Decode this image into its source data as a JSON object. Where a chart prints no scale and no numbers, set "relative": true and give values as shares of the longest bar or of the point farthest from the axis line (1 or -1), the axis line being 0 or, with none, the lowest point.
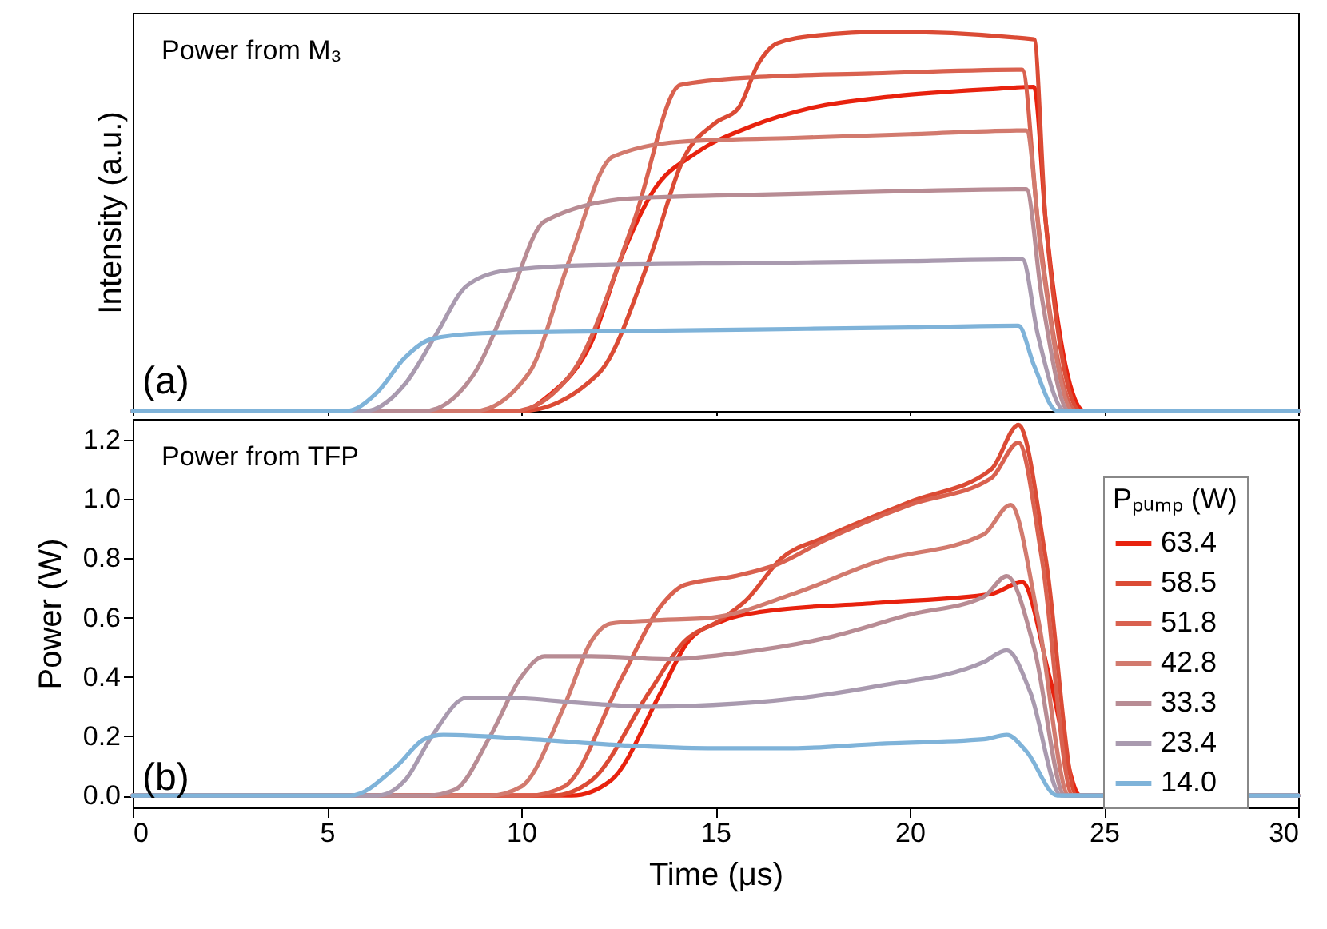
{
  "chart_data": [
    {
      "type": "line",
      "relative": true,
      "ylabel": "Intensity (a.u.)",
      "annotations": [
        "Power from M₃",
        "(a)"
      ],
      "xlim": [
        0,
        30
      ],
      "xticks": [
        0,
        5,
        10,
        15,
        20,
        25,
        30
      ],
      "tick_labels": false,
      "grid": false,
      "legend": false,
      "series": [
        {
          "color": "#e8220e",
          "x": [
            0,
            10,
            10.7,
            11.8,
            12.6,
            13.4,
            14.5,
            15.9,
            17.5,
            19.6,
            22.3,
            23.2,
            23.5,
            24.5,
            30
          ],
          "values": [
            0,
            0,
            0.04,
            0.18,
            0.41,
            0.58,
            0.68,
            0.75,
            0.8,
            0.83,
            0.85,
            0.855,
            0.5,
            0,
            0
          ]
        },
        {
          "color": "#db4b35",
          "x": [
            0,
            10,
            12,
            13.3,
            14.2,
            15.0,
            15.6,
            16.1,
            16.6,
            17.6,
            19.4,
            23.2,
            23.5,
            24.4,
            30
          ],
          "values": [
            0,
            0,
            0.1,
            0.4,
            0.67,
            0.76,
            0.8,
            0.915,
            0.97,
            0.99,
            1.0,
            0.98,
            0.5,
            0,
            0
          ]
        },
        {
          "color": "#d9614f",
          "x": [
            0,
            9.8,
            11.3,
            12.9,
            14.1,
            16,
            19,
            22.9,
            23.3,
            24.3,
            30
          ],
          "values": [
            0,
            0,
            0.1,
            0.5,
            0.86,
            0.88,
            0.89,
            0.9,
            0.5,
            0,
            0
          ]
        },
        {
          "color": "#d27a6e",
          "x": [
            0,
            8.8,
            10.2,
            11.25,
            12.35,
            14.1,
            17,
            20,
            23.0,
            23.4,
            24.2,
            30
          ],
          "values": [
            0,
            0,
            0.1,
            0.4,
            0.67,
            0.71,
            0.72,
            0.73,
            0.74,
            0.4,
            0,
            0
          ]
        },
        {
          "color": "#b88c94",
          "x": [
            0,
            7.5,
            8.8,
            9.7,
            10.6,
            12.8,
            16,
            20,
            23.0,
            23.4,
            24.1,
            30
          ],
          "values": [
            0,
            0,
            0.1,
            0.3,
            0.5,
            0.56,
            0.57,
            0.58,
            0.585,
            0.3,
            0,
            0
          ]
        },
        {
          "color": "#a99aaf",
          "x": [
            0,
            6.0,
            7.0,
            7.8,
            8.6,
            9.6,
            12,
            16,
            20,
            22.9,
            23.3,
            24.0,
            30
          ],
          "values": [
            0,
            0,
            0.07,
            0.2,
            0.33,
            0.37,
            0.385,
            0.39,
            0.395,
            0.4,
            0.2,
            0,
            0
          ]
        },
        {
          "color": "#7fb3d9",
          "x": [
            0,
            5.5,
            6.3,
            7.0,
            7.7,
            9,
            12,
            16,
            20,
            22.8,
            23.2,
            23.8,
            30
          ],
          "values": [
            0,
            0,
            0.05,
            0.14,
            0.19,
            0.205,
            0.21,
            0.215,
            0.22,
            0.225,
            0.12,
            0,
            0
          ]
        }
      ]
    },
    {
      "type": "line",
      "xlabel": "Time (μs)",
      "ylabel": "Power (W)",
      "legend_title": "Pₚᵤₘₚ (W)",
      "annotations": [
        "Power from TFP",
        "(b)"
      ],
      "xlim": [
        0,
        30
      ],
      "xticks": [
        0,
        5,
        10,
        15,
        20,
        25,
        30
      ],
      "ylim": [
        -0.04,
        1.27
      ],
      "yticks": [
        {
          "value": 0,
          "label": "0.0"
        },
        0.2,
        0.4,
        0.6,
        0.8,
        {
          "value": 1,
          "label": "1.0"
        },
        1.2
      ],
      "grid": false,
      "legend": "right",
      "series": [
        {
          "name": "63.4",
          "color": "#e8220e",
          "x": [
            0,
            11.3,
            12.3,
            13.6,
            14.3,
            15.2,
            16.2,
            19.2,
            22.1,
            22.9,
            23.6,
            24.4,
            30
          ],
          "values": [
            0,
            0,
            0.05,
            0.35,
            0.52,
            0.59,
            0.62,
            0.65,
            0.68,
            0.72,
            0.4,
            0,
            0
          ]
        },
        {
          "name": "58.5",
          "color": "#db4b35",
          "x": [
            0,
            10.8,
            11.8,
            13.3,
            14.2,
            15.1,
            15.8,
            16.7,
            17.8,
            20,
            22.1,
            22.8,
            23.5,
            24.3,
            30
          ],
          "values": [
            0,
            0,
            0.05,
            0.35,
            0.52,
            0.59,
            0.66,
            0.8,
            0.87,
            0.99,
            1.1,
            1.25,
            0.8,
            0,
            0
          ]
        },
        {
          "name": "51.8",
          "color": "#d9614f",
          "x": [
            0,
            10.2,
            11.1,
            12.6,
            13.6,
            14.2,
            15.5,
            16.6,
            17.8,
            20,
            22.1,
            22.8,
            23.4,
            24.2,
            30
          ],
          "values": [
            0,
            0,
            0.03,
            0.4,
            0.64,
            0.71,
            0.74,
            0.78,
            0.86,
            0.98,
            1.07,
            1.19,
            0.8,
            0,
            0
          ]
        },
        {
          "name": "42.8",
          "color": "#d27a6e",
          "x": [
            0,
            9.2,
            10,
            11.1,
            11.8,
            12.3,
            13.3,
            14.9,
            17,
            19.2,
            21.9,
            22.6,
            23.3,
            24.1,
            30
          ],
          "values": [
            0,
            0,
            0.03,
            0.3,
            0.52,
            0.58,
            0.59,
            0.6,
            0.68,
            0.79,
            0.88,
            0.98,
            0.6,
            0,
            0
          ]
        },
        {
          "name": "33.3",
          "color": "#b88c94",
          "x": [
            0,
            7.6,
            8.3,
            9.2,
            10,
            10.6,
            11.8,
            13.8,
            15.5,
            17.8,
            20,
            21.9,
            22.5,
            23.2,
            24.0,
            30
          ],
          "values": [
            0,
            0,
            0.02,
            0.2,
            0.4,
            0.47,
            0.47,
            0.46,
            0.48,
            0.53,
            0.61,
            0.67,
            0.74,
            0.5,
            0,
            0
          ]
        },
        {
          "name": "23.4",
          "color": "#a99aaf",
          "x": [
            0,
            6.3,
            7.0,
            7.7,
            8.6,
            9.6,
            11.8,
            13.3,
            15.5,
            17.8,
            19.2,
            21.9,
            22.5,
            23.1,
            23.9,
            30
          ],
          "values": [
            0,
            0,
            0.05,
            0.2,
            0.33,
            0.33,
            0.31,
            0.3,
            0.31,
            0.34,
            0.37,
            0.45,
            0.49,
            0.35,
            0,
            0
          ]
        },
        {
          "name": "14.0",
          "color": "#7fb3d9",
          "x": [
            0,
            5.6,
            6.8,
            7.5,
            8.0,
            10.3,
            12.6,
            14.8,
            17,
            19.2,
            21.9,
            22.5,
            23.0,
            23.8,
            30
          ],
          "values": [
            0,
            0,
            0.1,
            0.19,
            0.205,
            0.19,
            0.17,
            0.16,
            0.16,
            0.175,
            0.19,
            0.205,
            0.15,
            0,
            0
          ]
        }
      ]
    }
  ]
}
